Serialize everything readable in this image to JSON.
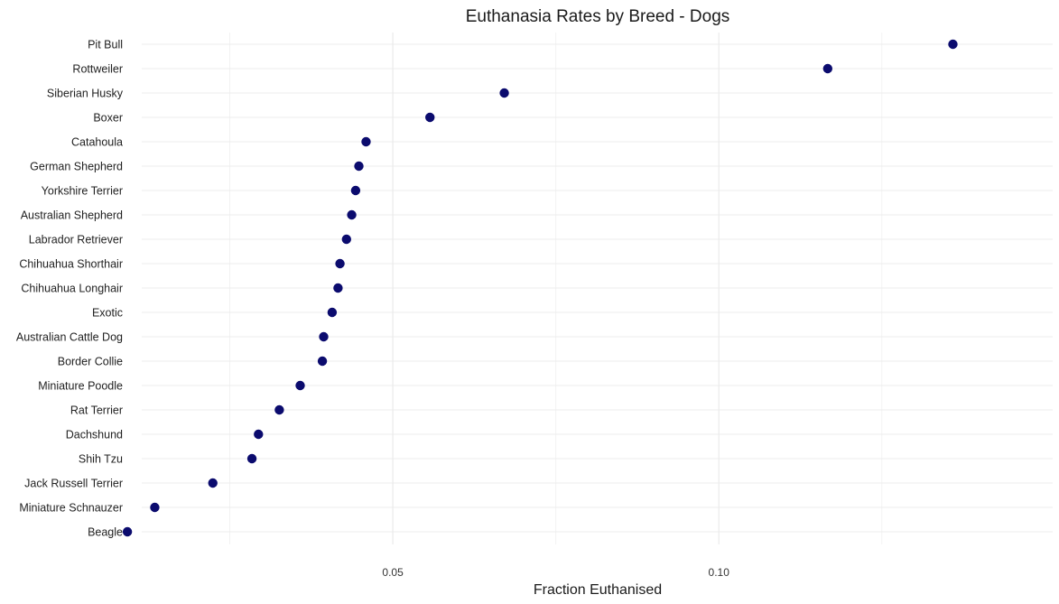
{
  "chart_data": {
    "type": "scatter",
    "title": "Euthanasia Rates by Breed - Dogs",
    "xlabel": "Fraction Euthanised",
    "ylabel": "",
    "xlim": [
      0.0115,
      0.1512
    ],
    "x_ticks": [
      0.05,
      0.1
    ],
    "x_tick_labels": [
      "0.05",
      "0.10"
    ],
    "grid": true,
    "point_color": "#0b0b6e",
    "categories": [
      "Pit Bull",
      "Rottweiler",
      "Siberian Husky",
      "Boxer",
      "Catahoula",
      "German Shepherd",
      "Yorkshire Terrier",
      "Australian Shepherd",
      "Labrador Retriever",
      "Chihuahua Shorthair",
      "Chihuahua Longhair",
      "Exotic",
      "Australian Cattle Dog",
      "Border Collie",
      "Miniature Poodle",
      "Rat Terrier",
      "Dachshund",
      "Shih Tzu",
      "Jack Russell Terrier",
      "Miniature Schnauzer",
      "Beagle"
    ],
    "values": [
      0.1359,
      0.1167,
      0.0671,
      0.0557,
      0.0459,
      0.0448,
      0.0443,
      0.0437,
      0.0429,
      0.0419,
      0.0416,
      0.0407,
      0.0394,
      0.0392,
      0.0358,
      0.0326,
      0.0294,
      0.0284,
      0.0224,
      0.0135,
      0.0093
    ]
  }
}
